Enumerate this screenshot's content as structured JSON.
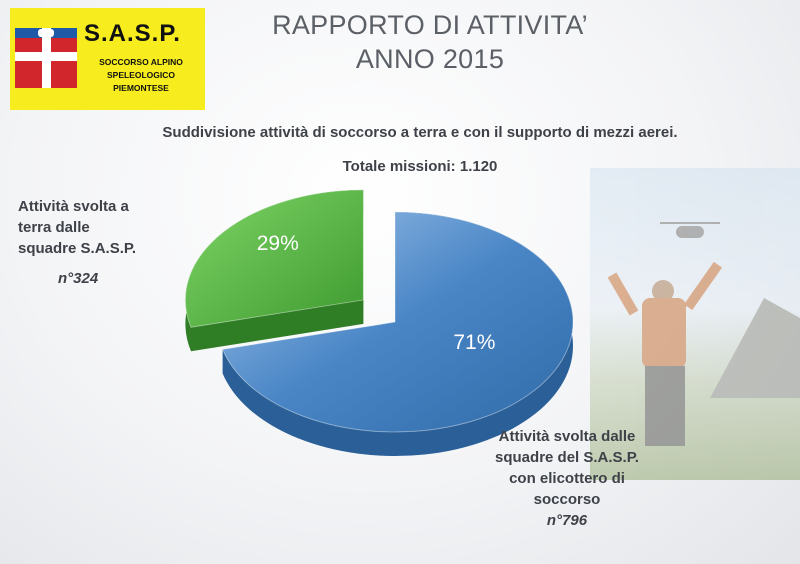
{
  "logo": {
    "name": "S.A.S.P.",
    "line1": "SOCCORSO ALPINO",
    "line2": "SPELEOLOGICO",
    "line3": "PIEMONTESE"
  },
  "colors": {
    "blue": "#4a86c6",
    "green": "#4caf3a",
    "logo_bg": "#f6ec1e"
  },
  "chart_data": {
    "type": "pie",
    "title_line1": "RAPPORTO DI ATTIVITA’",
    "title_line2": "ANNO 2015",
    "subtitle": "Suddivisione attività di soccorso a terra e con il supporto di mezzi aerei.",
    "total_label": "Totale missioni: 1.120",
    "slices": [
      {
        "label_lines": [
          "Attività svolta a",
          "terra dalle",
          "squadre S.A.S.P."
        ],
        "count": "n°324",
        "value": 29,
        "pct_label": "29%",
        "color": "#4caf3a",
        "exploded": true
      },
      {
        "label_lines": [
          "Attività svolta dalle",
          "squadre del S.A.S.P.",
          "con elicottero di",
          "soccorso"
        ],
        "count": "n°796",
        "value": 71,
        "pct_label": "71%",
        "color": "#4a86c6",
        "exploded": false
      }
    ]
  }
}
